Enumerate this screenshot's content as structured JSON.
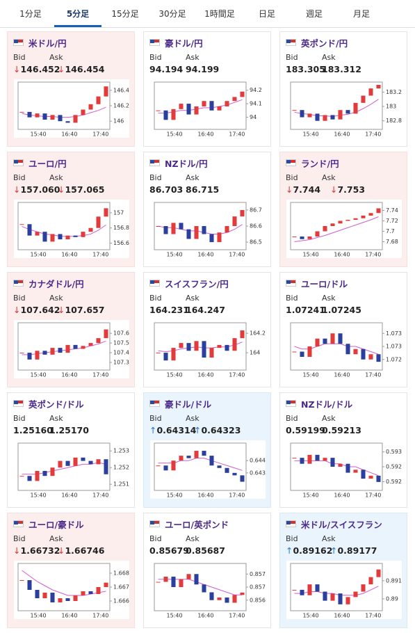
{
  "tabs": {
    "items": [
      "1分足",
      "5分足",
      "15分足",
      "30分足",
      "1時間足",
      "日足",
      "週足",
      "月足"
    ],
    "active": 1
  },
  "labels": {
    "bid": "Bid",
    "ask": "Ask"
  },
  "xticks": [
    "15:40",
    "16:40",
    "17:40"
  ],
  "cards": [
    {
      "name": "米ドル/円",
      "bid": "146.452",
      "ask": "146.454",
      "direction": "down",
      "chart": {
        "ylim": [
          145.93,
          146.47
        ],
        "yticks": [
          146,
          146.2,
          146.4
        ],
        "closes": [
          146.12,
          146.05,
          146.1,
          146.02,
          146.08,
          146.0,
          145.98,
          146.08,
          146.15,
          146.22,
          146.32,
          146.45
        ],
        "ma": [
          146.1,
          146.08,
          146.07,
          146.06,
          146.06,
          146.05,
          146.05,
          146.06,
          146.08,
          146.11,
          146.14,
          146.18
        ]
      }
    },
    {
      "name": "豪ドル/円",
      "bid": "94.194",
      "ask": "94.199",
      "direction": null,
      "chart": {
        "ylim": [
          93.93,
          94.24
        ],
        "yticks": [
          94,
          94.1,
          94.2
        ],
        "closes": [
          94.05,
          93.98,
          94.06,
          94.1,
          94.02,
          94.08,
          94.12,
          94.05,
          94.08,
          94.12,
          94.15,
          94.19
        ],
        "ma": [
          94.03,
          94.03,
          94.04,
          94.05,
          94.05,
          94.06,
          94.07,
          94.07,
          94.08,
          94.09,
          94.11,
          94.13
        ]
      }
    },
    {
      "name": "英ポンド/円",
      "bid": "183.305",
      "ask": "183.312",
      "direction": null,
      "chart": {
        "ylim": [
          182.72,
          183.3
        ],
        "yticks": [
          182.8,
          183,
          183.2
        ],
        "closes": [
          182.95,
          182.85,
          182.9,
          182.8,
          182.88,
          182.82,
          182.95,
          182.9,
          183.05,
          183.15,
          183.25,
          183.3
        ],
        "ma": [
          182.92,
          182.9,
          182.89,
          182.87,
          182.87,
          182.86,
          182.88,
          182.89,
          182.92,
          182.97,
          183.03,
          183.1
        ]
      }
    },
    {
      "name": "ユーロ/円",
      "bid": "157.060",
      "ask": "157.065",
      "direction": "down",
      "chart": {
        "ylim": [
          156.55,
          157.1
        ],
        "yticks": [
          156.6,
          156.8,
          157
        ],
        "closes": [
          156.85,
          156.7,
          156.75,
          156.62,
          156.72,
          156.65,
          156.7,
          156.68,
          156.75,
          156.8,
          156.95,
          157.06
        ],
        "ma": [
          156.82,
          156.78,
          156.75,
          156.72,
          156.71,
          156.69,
          156.69,
          156.69,
          156.7,
          156.72,
          156.77,
          156.84
        ]
      }
    },
    {
      "name": "NZドル/円",
      "bid": "86.703",
      "ask": "86.715",
      "direction": null,
      "chart": {
        "ylim": [
          86.47,
          86.73
        ],
        "yticks": [
          86.5,
          86.6,
          86.7
        ],
        "closes": [
          86.6,
          86.55,
          86.62,
          86.58,
          86.52,
          86.6,
          86.55,
          86.5,
          86.56,
          86.6,
          86.66,
          86.7
        ],
        "ma": [
          86.6,
          86.59,
          86.59,
          86.58,
          86.57,
          86.57,
          86.56,
          86.55,
          86.55,
          86.56,
          86.58,
          86.61
        ]
      }
    },
    {
      "name": "ランド/円",
      "bid": "7.744",
      "ask": "7.753",
      "direction": "down",
      "chart": {
        "ylim": [
          7.67,
          7.75
        ],
        "yticks": [
          7.68,
          7.7,
          7.72,
          7.74
        ],
        "closes": [
          7.69,
          7.685,
          7.69,
          7.7,
          7.71,
          7.715,
          7.72,
          7.722,
          7.725,
          7.73,
          7.735,
          7.744
        ],
        "ma": [
          7.68,
          7.682,
          7.684,
          7.688,
          7.692,
          7.697,
          7.702,
          7.707,
          7.712,
          7.717,
          7.722,
          7.728
        ]
      }
    },
    {
      "name": "カナダドル/円",
      "bid": "107.642",
      "ask": "107.657",
      "direction": "down",
      "chart": {
        "ylim": [
          107.25,
          107.68
        ],
        "yticks": [
          107.3,
          107.4,
          107.5,
          107.6
        ],
        "closes": [
          107.4,
          107.33,
          107.42,
          107.38,
          107.45,
          107.4,
          107.48,
          107.44,
          107.47,
          107.5,
          107.55,
          107.64
        ],
        "ma": [
          107.38,
          107.38,
          107.39,
          107.4,
          107.41,
          107.42,
          107.43,
          107.44,
          107.45,
          107.47,
          107.49,
          107.52
        ]
      }
    },
    {
      "name": "スイスフラン/円",
      "bid": "164.231",
      "ask": "164.247",
      "direction": null,
      "chart": {
        "ylim": [
          163.85,
          164.28
        ],
        "yticks": [
          164,
          164.2
        ],
        "closes": [
          164.0,
          163.92,
          164.05,
          164.1,
          164.02,
          164.12,
          163.95,
          164.05,
          164.08,
          164.02,
          164.15,
          164.23
        ],
        "ma": [
          164.02,
          164.01,
          164.02,
          164.04,
          164.05,
          164.06,
          164.05,
          164.05,
          164.06,
          164.06,
          164.08,
          164.11
        ]
      }
    },
    {
      "name": "ユーロ/ドル",
      "bid": "1.07241",
      "ask": "1.07245",
      "direction": null,
      "chart": {
        "ylim": [
          1.0722,
          1.0738
        ],
        "yticks": [
          1.0725,
          1.073,
          1.0735
        ],
        "closes": [
          1.0728,
          1.0726,
          1.073,
          1.0733,
          1.0731,
          1.0735,
          1.0731,
          1.0727,
          1.0729,
          1.0725,
          1.0727,
          1.07241
        ],
        "ma": [
          1.073,
          1.0729,
          1.0729,
          1.073,
          1.0731,
          1.0731,
          1.0731,
          1.073,
          1.073,
          1.0729,
          1.0728,
          1.0727
        ]
      }
    },
    {
      "name": "英ポンド/ドル",
      "bid": "1.25160",
      "ask": "1.25170",
      "direction": null,
      "chart": {
        "ylim": [
          1.2508,
          1.2533
        ],
        "yticks": [
          1.251,
          1.252,
          1.253
        ],
        "closes": [
          1.2515,
          1.2512,
          1.2518,
          1.2515,
          1.252,
          1.2524,
          1.2521,
          1.2526,
          1.2524,
          1.2522,
          1.2525,
          1.2516
        ],
        "ma": [
          1.2516,
          1.2516,
          1.2516,
          1.2517,
          1.2518,
          1.2519,
          1.252,
          1.2521,
          1.2522,
          1.2522,
          1.2523,
          1.2522
        ]
      }
    },
    {
      "name": "豪ドル/ドル",
      "bid": "0.64314",
      "ask": "0.64323",
      "direction": "up",
      "chart": {
        "ylim": [
          0.6429,
          0.6446
        ],
        "yticks": [
          0.6435,
          0.644
        ],
        "closes": [
          0.6438,
          0.6436,
          0.644,
          0.6442,
          0.6441,
          0.6444,
          0.6442,
          0.6438,
          0.6437,
          0.6435,
          0.6434,
          0.64314
        ],
        "ma": [
          0.6439,
          0.6439,
          0.6439,
          0.644,
          0.644,
          0.6441,
          0.6441,
          0.644,
          0.6439,
          0.6438,
          0.6437,
          0.6436
        ]
      }
    },
    {
      "name": "NZドル/ドル",
      "bid": "0.59199",
      "ask": "0.59213",
      "direction": null,
      "chart": {
        "ylim": [
          0.5918,
          0.5932
        ],
        "yticks": [
          0.592,
          0.5925,
          0.593
        ],
        "closes": [
          0.5928,
          0.5926,
          0.5929,
          0.5927,
          0.5928,
          0.5925,
          0.5926,
          0.5923,
          0.5924,
          0.5921,
          0.5922,
          0.59199
        ],
        "ma": [
          0.5927,
          0.5927,
          0.5927,
          0.5927,
          0.5927,
          0.5926,
          0.5926,
          0.5925,
          0.5925,
          0.5924,
          0.5923,
          0.5922
        ]
      }
    },
    {
      "name": "ユーロ/豪ドル",
      "bid": "1.66732",
      "ask": "1.66746",
      "direction": "down",
      "chart": {
        "ylim": [
          1.6655,
          1.6685
        ],
        "yticks": [
          1.666,
          1.667,
          1.668
        ],
        "closes": [
          1.6675,
          1.6668,
          1.6662,
          1.6666,
          1.6659,
          1.6662,
          1.666,
          1.6664,
          1.6667,
          1.6665,
          1.667,
          1.66732
        ],
        "ma": [
          1.6682,
          1.6678,
          1.6674,
          1.6671,
          1.6668,
          1.6666,
          1.6664,
          1.6664,
          1.6664,
          1.6665,
          1.6666,
          1.6667
        ]
      }
    },
    {
      "name": "ユーロ/英ポンド",
      "bid": "0.85679",
      "ask": "0.85687",
      "direction": null,
      "chart": {
        "ylim": [
          0.8562,
          0.8578
        ],
        "yticks": [
          0.8565,
          0.857,
          0.8575
        ],
        "closes": [
          0.8572,
          0.8574,
          0.857,
          0.8573,
          0.8575,
          0.8571,
          0.8568,
          0.8565,
          0.8566,
          0.8564,
          0.8567,
          0.85679
        ],
        "ma": [
          0.8573,
          0.8573,
          0.8573,
          0.8573,
          0.8573,
          0.8572,
          0.8571,
          0.857,
          0.8569,
          0.8568,
          0.8567,
          0.8567
        ]
      }
    },
    {
      "name": "米ドル/スイスフラン",
      "bid": "0.89162",
      "ask": "0.89177",
      "direction": "up",
      "chart": {
        "ylim": [
          0.8895,
          0.8918
        ],
        "yticks": [
          0.89,
          0.891
        ],
        "closes": [
          0.8905,
          0.8902,
          0.8908,
          0.8904,
          0.8899,
          0.8903,
          0.8897,
          0.8901,
          0.8904,
          0.8908,
          0.8912,
          0.89162
        ],
        "ma": [
          0.8903,
          0.8903,
          0.8904,
          0.8904,
          0.8903,
          0.8903,
          0.8902,
          0.8902,
          0.8902,
          0.8903,
          0.8905,
          0.8907
        ]
      }
    }
  ]
}
